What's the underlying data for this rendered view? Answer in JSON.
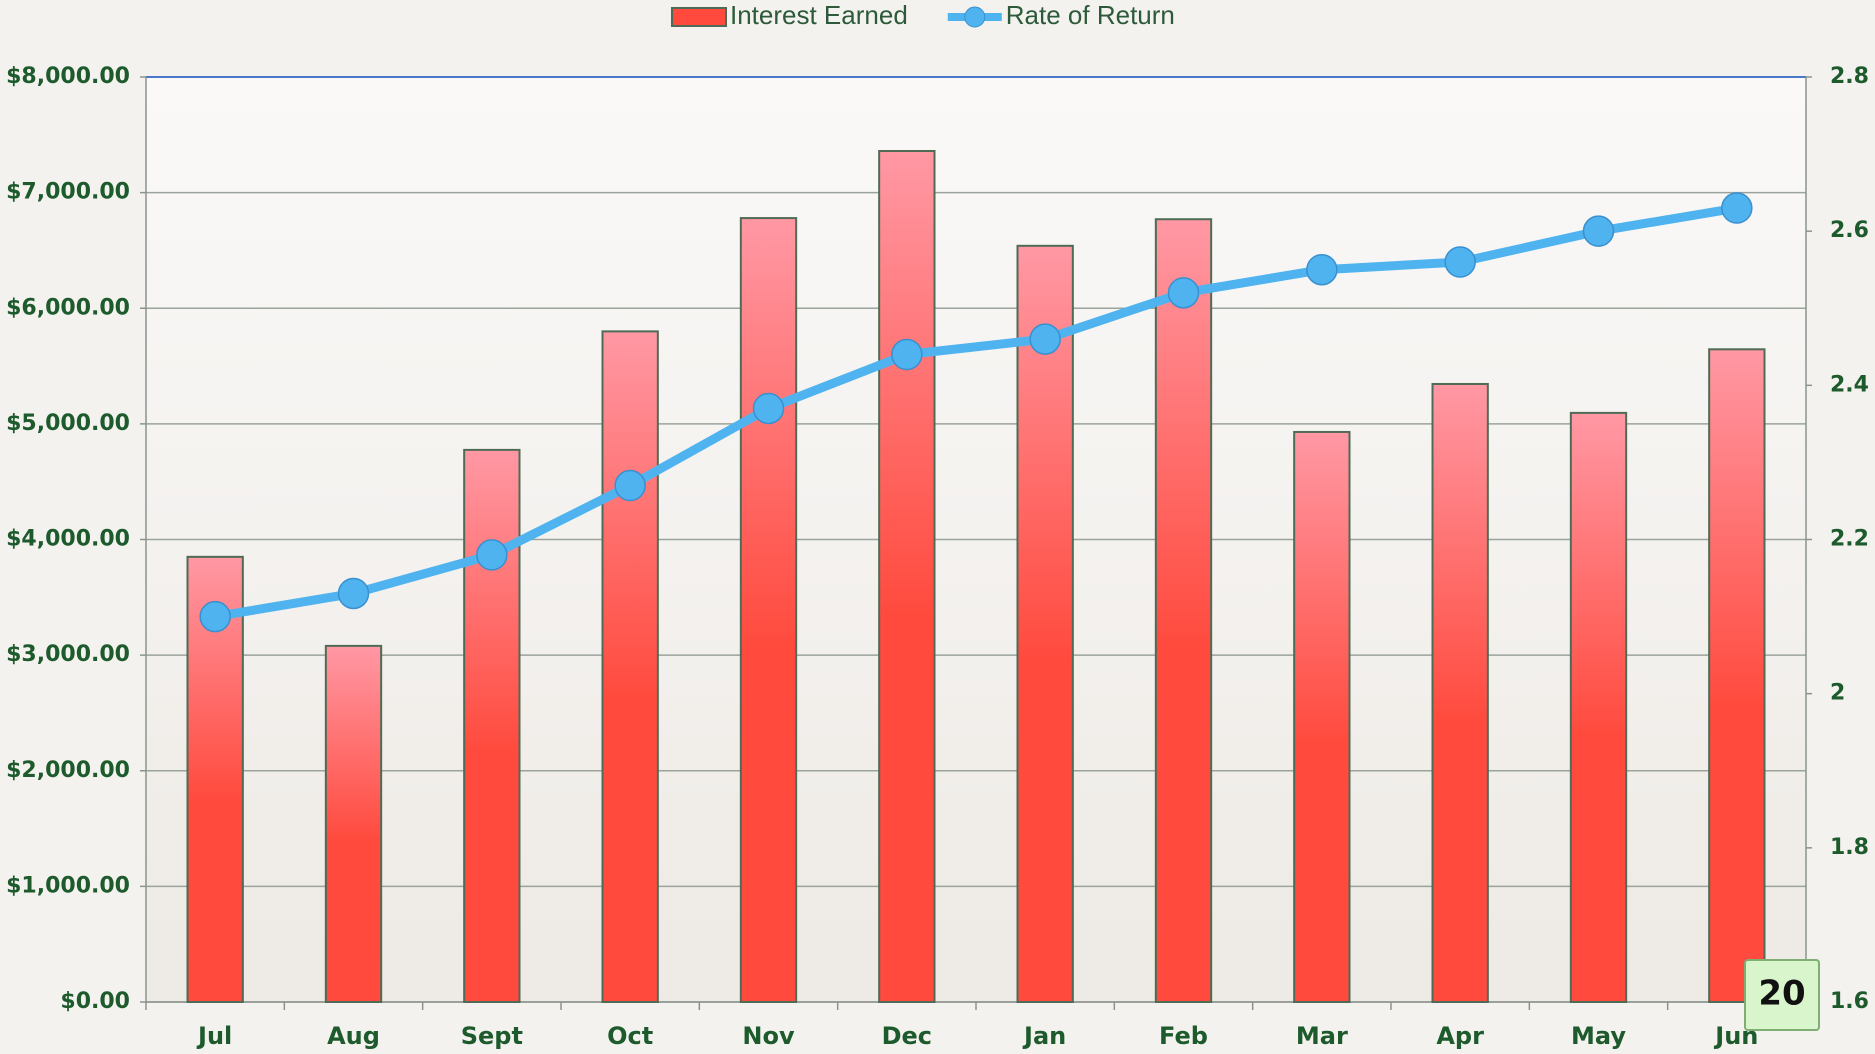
{
  "chart_data": {
    "type": "bar_line",
    "categories": [
      "Jul",
      "Aug",
      "Sept",
      "Oct",
      "Nov",
      "Dec",
      "Jan",
      "Feb",
      "Mar",
      "Apr",
      "May",
      "Jun"
    ],
    "series": [
      {
        "name": "Interest Earned",
        "type": "bar",
        "color": "#ff4a3d",
        "values": [
          3850,
          3080,
          4775,
          5800,
          6780,
          7360,
          6540,
          6770,
          4930,
          5345,
          5095,
          5645
        ]
      },
      {
        "name": "Rate of Return",
        "type": "line",
        "axis": "y2",
        "color": "#4fb3f0",
        "values": [
          2.1,
          2.13,
          2.18,
          2.27,
          2.37,
          2.44,
          2.46,
          2.52,
          2.55,
          2.56,
          2.6,
          2.63
        ]
      }
    ],
    "ylim": [
      0,
      8000
    ],
    "yticks": [
      {
        "value": 0,
        "label": "$0.00"
      },
      {
        "value": 1000,
        "label": "$1,000.00"
      },
      {
        "value": 2000,
        "label": "$2,000.00"
      },
      {
        "value": 3000,
        "label": "$3,000.00"
      },
      {
        "value": 4000,
        "label": "$4,000.00"
      },
      {
        "value": 5000,
        "label": "$5,000.00"
      },
      {
        "value": 6000,
        "label": "$6,000.00"
      },
      {
        "value": 7000,
        "label": "$7,000.00"
      },
      {
        "value": 8000,
        "label": "$8,000.00"
      }
    ],
    "y2lim": [
      1.6,
      2.8
    ],
    "y2ticks": [
      1.6,
      1.8,
      2,
      2.2,
      2.4,
      2.6,
      2.8
    ],
    "grid": true,
    "legend": "top"
  },
  "slide_number": "20"
}
